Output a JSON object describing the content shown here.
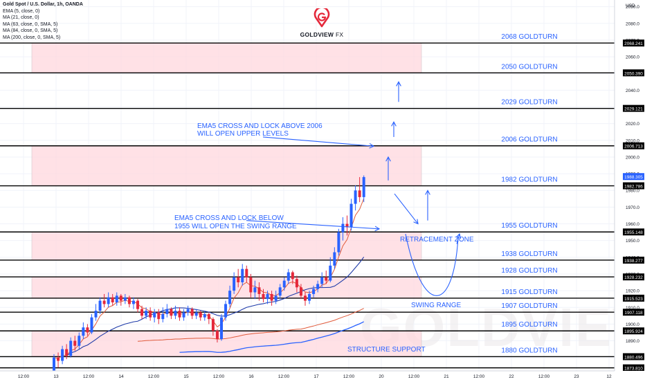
{
  "header": {
    "title": "Gold Spot / U.S. Dollar, 1h, OANDA",
    "indicators": [
      "EMA (5, close, 0)",
      "MA (21, close, 0)",
      "MA (63, close, 0, SMA, 5)",
      "MA (84, close, 0, SMA, 5)",
      "MA (200, close, 0, SMA, 5)"
    ]
  },
  "logo": {
    "brand": "GOLDVIEW",
    "suffix": "FX",
    "watermark": "GOLDVIEW"
  },
  "axis": {
    "currency": "USD"
  },
  "colors": {
    "bull": "#2962ff",
    "bear": "#e5283a",
    "ema": "#e05a3a",
    "sma": "#1e3aa8",
    "ma200": "#2962ff",
    "zone": "#ffd8de",
    "text_blue": "#2962ff"
  },
  "chart_data": {
    "type": "candlestick",
    "symbol": "XAUUSD",
    "timeframe": "1h",
    "ylim": [
      1872,
      2094
    ],
    "y_ticks": [
      1880,
      1890,
      1900,
      1910,
      1920,
      1930,
      1940,
      1950,
      1960,
      1970,
      1980,
      1990,
      2000,
      2010,
      2020,
      2030,
      2040,
      2050,
      2060,
      2070,
      2080,
      2090
    ],
    "x_labels": [
      "12:00",
      "13",
      "12:00",
      "14",
      "12:00",
      "15",
      "12:00",
      "16",
      "12:00",
      "17",
      "12:00",
      "20",
      "12:00",
      "21",
      "12:00",
      "22",
      "12:00",
      "23",
      "12"
    ],
    "levels": [
      {
        "value": 2068.241,
        "price_label": "2068.241",
        "label": "2068 GOLDTURN"
      },
      {
        "value": 2050.39,
        "price_label": "2050.390",
        "label": "2050 GOLDTURN"
      },
      {
        "value": 2029.121,
        "price_label": "2029.121",
        "label": "2029 GOLDTURN"
      },
      {
        "value": 2006.713,
        "price_label": "2006.713",
        "label": "2006 GOLDTURN"
      },
      {
        "value": 1982.786,
        "price_label": "1982.786",
        "label": "1982 GOLDTURN"
      },
      {
        "value": 1955.148,
        "price_label": "1955.148",
        "label": "1955 GOLDTURN"
      },
      {
        "value": 1938.277,
        "price_label": "1938.277",
        "label": "1938 GOLDTURN"
      },
      {
        "value": 1928.232,
        "price_label": "1928.232",
        "label": "1928 GOLDTURN"
      },
      {
        "value": 1915.523,
        "price_label": "1915.523",
        "label": "1915 GOLDTURN"
      },
      {
        "value": 1907.118,
        "price_label": "1907.118",
        "label": "1907 GOLDTURN"
      },
      {
        "value": 1895.924,
        "price_label": "1895.924",
        "label": "1895 GOLDTURN"
      },
      {
        "value": 1880.496,
        "price_label": "1880.496",
        "label": "1880 GOLDTURN"
      },
      {
        "value": 1873.81,
        "price_label": "1873.810",
        "label": ""
      }
    ],
    "current_price": {
      "value": 1988.305,
      "label": "1988.305"
    },
    "zones": [
      {
        "from": 2050.39,
        "to": 2068.241
      },
      {
        "from": 1982.786,
        "to": 2006.713
      },
      {
        "from": 1938.277,
        "to": 1955.148
      },
      {
        "from": 1915.523,
        "to": 1928.232
      },
      {
        "from": 1880.496,
        "to": 1895.924
      }
    ],
    "annotations": {
      "ema5_above": [
        "EMA5 CROSS AND LOCK ABOVE 2006",
        "WILL OPEN UPPER LEVELS"
      ],
      "ema5_below": [
        "EMA5 CROSS AND LOCK BELOW",
        "1955 WILL OPEN THE SWING RANGE"
      ],
      "retracement": "RETRACEMENT ZONE",
      "swing": "SWING RANGE",
      "structure": "STRUCTURE SUPPORT"
    },
    "candles": [
      [
        1872,
        1880,
        1870,
        1882
      ],
      [
        1880,
        1878,
        1874,
        1883
      ],
      [
        1878,
        1885,
        1876,
        1887
      ],
      [
        1885,
        1881,
        1879,
        1888
      ],
      [
        1881,
        1890,
        1880,
        1892
      ],
      [
        1890,
        1887,
        1884,
        1893
      ],
      [
        1887,
        1893,
        1885,
        1895
      ],
      [
        1893,
        1898,
        1891,
        1901
      ],
      [
        1898,
        1895,
        1893,
        1900
      ],
      [
        1895,
        1904,
        1894,
        1906
      ],
      [
        1904,
        1908,
        1902,
        1912
      ],
      [
        1908,
        1914,
        1906,
        1916
      ],
      [
        1914,
        1912,
        1910,
        1918
      ],
      [
        1912,
        1916,
        1910,
        1919
      ],
      [
        1916,
        1913,
        1911,
        1918
      ],
      [
        1913,
        1917,
        1911,
        1919
      ],
      [
        1917,
        1914,
        1911,
        1918
      ],
      [
        1914,
        1916,
        1912,
        1918
      ],
      [
        1916,
        1912,
        1910,
        1917
      ],
      [
        1912,
        1914,
        1909,
        1916
      ],
      [
        1914,
        1909,
        1907,
        1915
      ],
      [
        1909,
        1905,
        1903,
        1911
      ],
      [
        1905,
        1908,
        1903,
        1910
      ],
      [
        1908,
        1904,
        1902,
        1910
      ],
      [
        1904,
        1907,
        1901,
        1909
      ],
      [
        1907,
        1903,
        1900,
        1909
      ],
      [
        1903,
        1906,
        1901,
        1910
      ],
      [
        1906,
        1909,
        1904,
        1912
      ],
      [
        1909,
        1905,
        1903,
        1910
      ],
      [
        1905,
        1908,
        1903,
        1911
      ],
      [
        1908,
        1904,
        1902,
        1910
      ],
      [
        1904,
        1907,
        1902,
        1909
      ],
      [
        1907,
        1909,
        1905,
        1911
      ],
      [
        1909,
        1905,
        1903,
        1910
      ],
      [
        1905,
        1907,
        1903,
        1909
      ],
      [
        1907,
        1904,
        1902,
        1908
      ],
      [
        1904,
        1906,
        1902,
        1908
      ],
      [
        1906,
        1903,
        1900,
        1907
      ],
      [
        1903,
        1896,
        1893,
        1904
      ],
      [
        1896,
        1891,
        1889,
        1897
      ],
      [
        1891,
        1904,
        1890,
        1906
      ],
      [
        1904,
        1912,
        1902,
        1914
      ],
      [
        1912,
        1920,
        1910,
        1923
      ],
      [
        1920,
        1928,
        1918,
        1931
      ],
      [
        1928,
        1925,
        1922,
        1933
      ],
      [
        1925,
        1933,
        1923,
        1936
      ],
      [
        1933,
        1928,
        1925,
        1935
      ],
      [
        1928,
        1919,
        1916,
        1930
      ],
      [
        1919,
        1922,
        1915,
        1926
      ],
      [
        1922,
        1918,
        1914,
        1925
      ],
      [
        1918,
        1915,
        1913,
        1921
      ],
      [
        1915,
        1918,
        1912,
        1920
      ],
      [
        1918,
        1914,
        1911,
        1920
      ],
      [
        1914,
        1917,
        1912,
        1920
      ],
      [
        1917,
        1922,
        1915,
        1924
      ],
      [
        1922,
        1926,
        1920,
        1928
      ],
      [
        1926,
        1931,
        1924,
        1933
      ],
      [
        1931,
        1927,
        1924,
        1932
      ],
      [
        1927,
        1922,
        1919,
        1929
      ],
      [
        1922,
        1917,
        1915,
        1924
      ],
      [
        1917,
        1914,
        1911,
        1919
      ],
      [
        1914,
        1918,
        1912,
        1920
      ],
      [
        1918,
        1921,
        1916,
        1923
      ],
      [
        1921,
        1924,
        1919,
        1926
      ],
      [
        1924,
        1928,
        1922,
        1931
      ],
      [
        1928,
        1926,
        1924,
        1932
      ],
      [
        1926,
        1935,
        1925,
        1940
      ],
      [
        1935,
        1943,
        1933,
        1946
      ],
      [
        1943,
        1955,
        1941,
        1957
      ],
      [
        1955,
        1960,
        1950,
        1964
      ],
      [
        1960,
        1958,
        1953,
        1965
      ],
      [
        1958,
        1972,
        1956,
        1975
      ],
      [
        1972,
        1980,
        1968,
        1983
      ],
      [
        1980,
        1976,
        1973,
        1988
      ],
      [
        1976,
        1988,
        1973,
        1989
      ]
    ]
  }
}
